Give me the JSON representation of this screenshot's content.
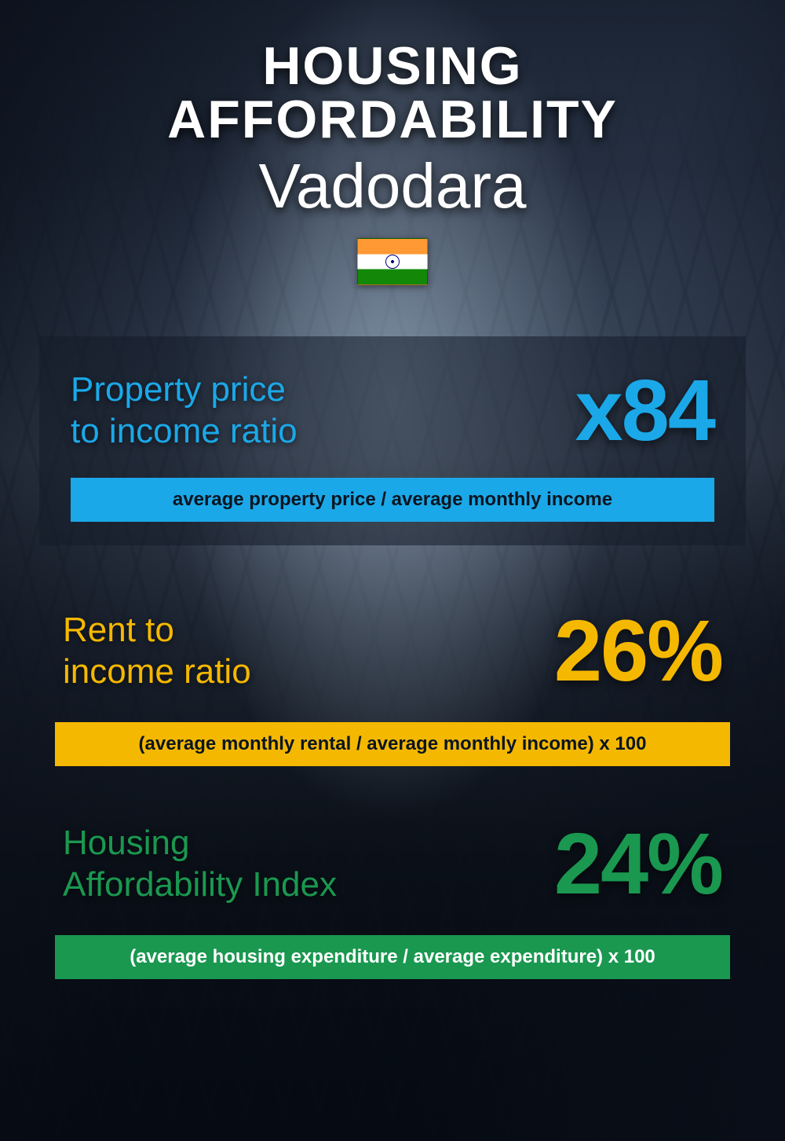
{
  "header": {
    "title": "HOUSING AFFORDABILITY",
    "subtitle": "Vadodara",
    "country": "India"
  },
  "metrics": {
    "property_price": {
      "label": "Property price\nto income ratio",
      "value": "x84",
      "formula": "average property price / average monthly income",
      "color": "#1ba8e8",
      "type": "ratio"
    },
    "rent_income": {
      "label": "Rent to\nincome ratio",
      "value": "26%",
      "formula": "(average monthly rental / average monthly income) x 100",
      "color": "#f5b800",
      "type": "percentage"
    },
    "affordability_index": {
      "label": "Housing\nAffordability Index",
      "value": "24%",
      "formula": "(average housing expenditure / average expenditure) x 100",
      "color": "#1a9850",
      "type": "percentage"
    }
  },
  "styling": {
    "background_gradient": [
      "#1a2332",
      "#2a3548",
      "#4a5a72",
      "#6a7a92",
      "#3a4558",
      "#1a2028",
      "#0a1018"
    ],
    "title_color": "#ffffff",
    "title_fontsize": 68,
    "subtitle_fontsize": 80,
    "metric_label_fontsize": 44,
    "metric_value_fontsize": 110,
    "formula_fontsize": 24,
    "card_background": "rgba(20, 28, 40, 0.55)",
    "flag_colors": {
      "saffron": "#FF9933",
      "white": "#ffffff",
      "green": "#138808",
      "chakra": "#000080"
    }
  }
}
